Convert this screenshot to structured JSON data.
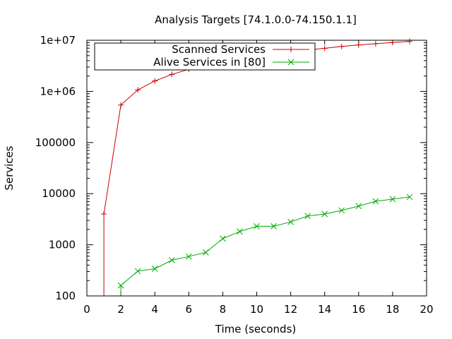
{
  "chart_data": {
    "type": "line",
    "title": "Analysis Targets [74.1.0.0-74.150.1.1]",
    "xlabel": "Time (seconds)",
    "ylabel": "Services",
    "xlim": [
      0,
      20
    ],
    "ylim": [
      100,
      10000000
    ],
    "yscale": "log",
    "x_ticks": [
      0,
      2,
      4,
      6,
      8,
      10,
      12,
      14,
      16,
      18,
      20
    ],
    "y_ticks": [
      {
        "value": 100,
        "label": "100"
      },
      {
        "value": 1000,
        "label": "1000"
      },
      {
        "value": 10000,
        "label": "10000"
      },
      {
        "value": 100000,
        "label": "100000"
      },
      {
        "value": 1000000,
        "label": "1e+06"
      },
      {
        "value": 10000000,
        "label": "1e+07"
      }
    ],
    "legend_position": "top",
    "series": [
      {
        "name": "Scanned Services",
        "color": "#cc0000",
        "marker": "plus",
        "x": [
          1,
          2,
          3,
          4,
          5,
          6,
          7,
          8,
          9,
          10,
          11,
          12,
          13,
          14,
          15,
          16,
          17,
          18,
          19
        ],
        "y": [
          4000,
          540000,
          1070000,
          1600000,
          2150000,
          2700000,
          3200000,
          3700000,
          4250000,
          4750000,
          5350000,
          5900000,
          6450000,
          6950000,
          7550000,
          8100000,
          8550000,
          9050000,
          9500000
        ],
        "drop_to_axis_from_x": 1
      },
      {
        "name": "Alive Services in [80]",
        "color": "#00aa00",
        "marker": "cross",
        "x": [
          2,
          3,
          4,
          5,
          6,
          7,
          8,
          9,
          10,
          11,
          12,
          13,
          14,
          15,
          16,
          17,
          18,
          19
        ],
        "y": [
          160,
          305,
          340,
          500,
          590,
          710,
          1320,
          1820,
          2300,
          2300,
          2800,
          3650,
          4000,
          4700,
          5700,
          7100,
          7800,
          8600
        ],
        "drop_to_axis_from_x": 2
      }
    ]
  }
}
